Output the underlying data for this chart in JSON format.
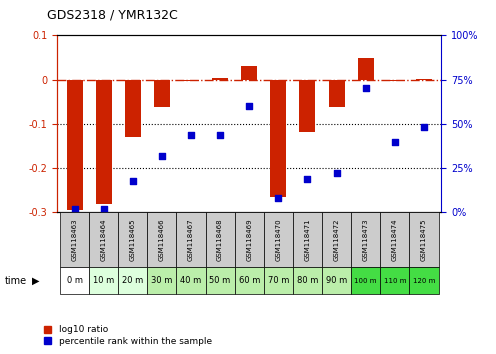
{
  "title": "GDS2318 / YMR132C",
  "samples": [
    "GSM118463",
    "GSM118464",
    "GSM118465",
    "GSM118466",
    "GSM118467",
    "GSM118468",
    "GSM118469",
    "GSM118470",
    "GSM118471",
    "GSM118472",
    "GSM118473",
    "GSM118474",
    "GSM118475"
  ],
  "time_labels": [
    "0 m",
    "10 m",
    "20 m",
    "30 m",
    "40 m",
    "50 m",
    "60 m",
    "70 m",
    "80 m",
    "90 m",
    "100 m",
    "110 m",
    "120 m"
  ],
  "log10_ratio": [
    -0.295,
    -0.28,
    -0.13,
    -0.062,
    -0.004,
    0.003,
    0.03,
    -0.265,
    -0.118,
    -0.062,
    0.048,
    -0.004,
    0.002
  ],
  "percentile_rank": [
    2,
    2,
    18,
    32,
    44,
    44,
    60,
    8,
    19,
    22,
    70,
    40,
    48
  ],
  "ylim_left": [
    -0.3,
    0.1
  ],
  "ylim_right": [
    0,
    100
  ],
  "bar_color": "#cc2200",
  "scatter_color": "#0000cc",
  "grid_color": "#000000",
  "dash_color": "#cc2200",
  "bg_color": "#ffffff",
  "time_colors": [
    "#ffffff",
    "#ddffdd",
    "#ddffdd",
    "#bbeeaa",
    "#bbeeaa",
    "#bbeeaa",
    "#bbeeaa",
    "#bbeeaa",
    "#bbeeaa",
    "#bbeeaa",
    "#44dd44",
    "#44dd44",
    "#44dd44"
  ],
  "header_color": "#cccccc",
  "left_yticks": [
    0.1,
    0.0,
    -0.1,
    -0.2,
    -0.3
  ],
  "right_yticks": [
    100,
    75,
    50,
    25,
    0
  ],
  "legend_red": "log10 ratio",
  "legend_blue": "percentile rank within the sample"
}
